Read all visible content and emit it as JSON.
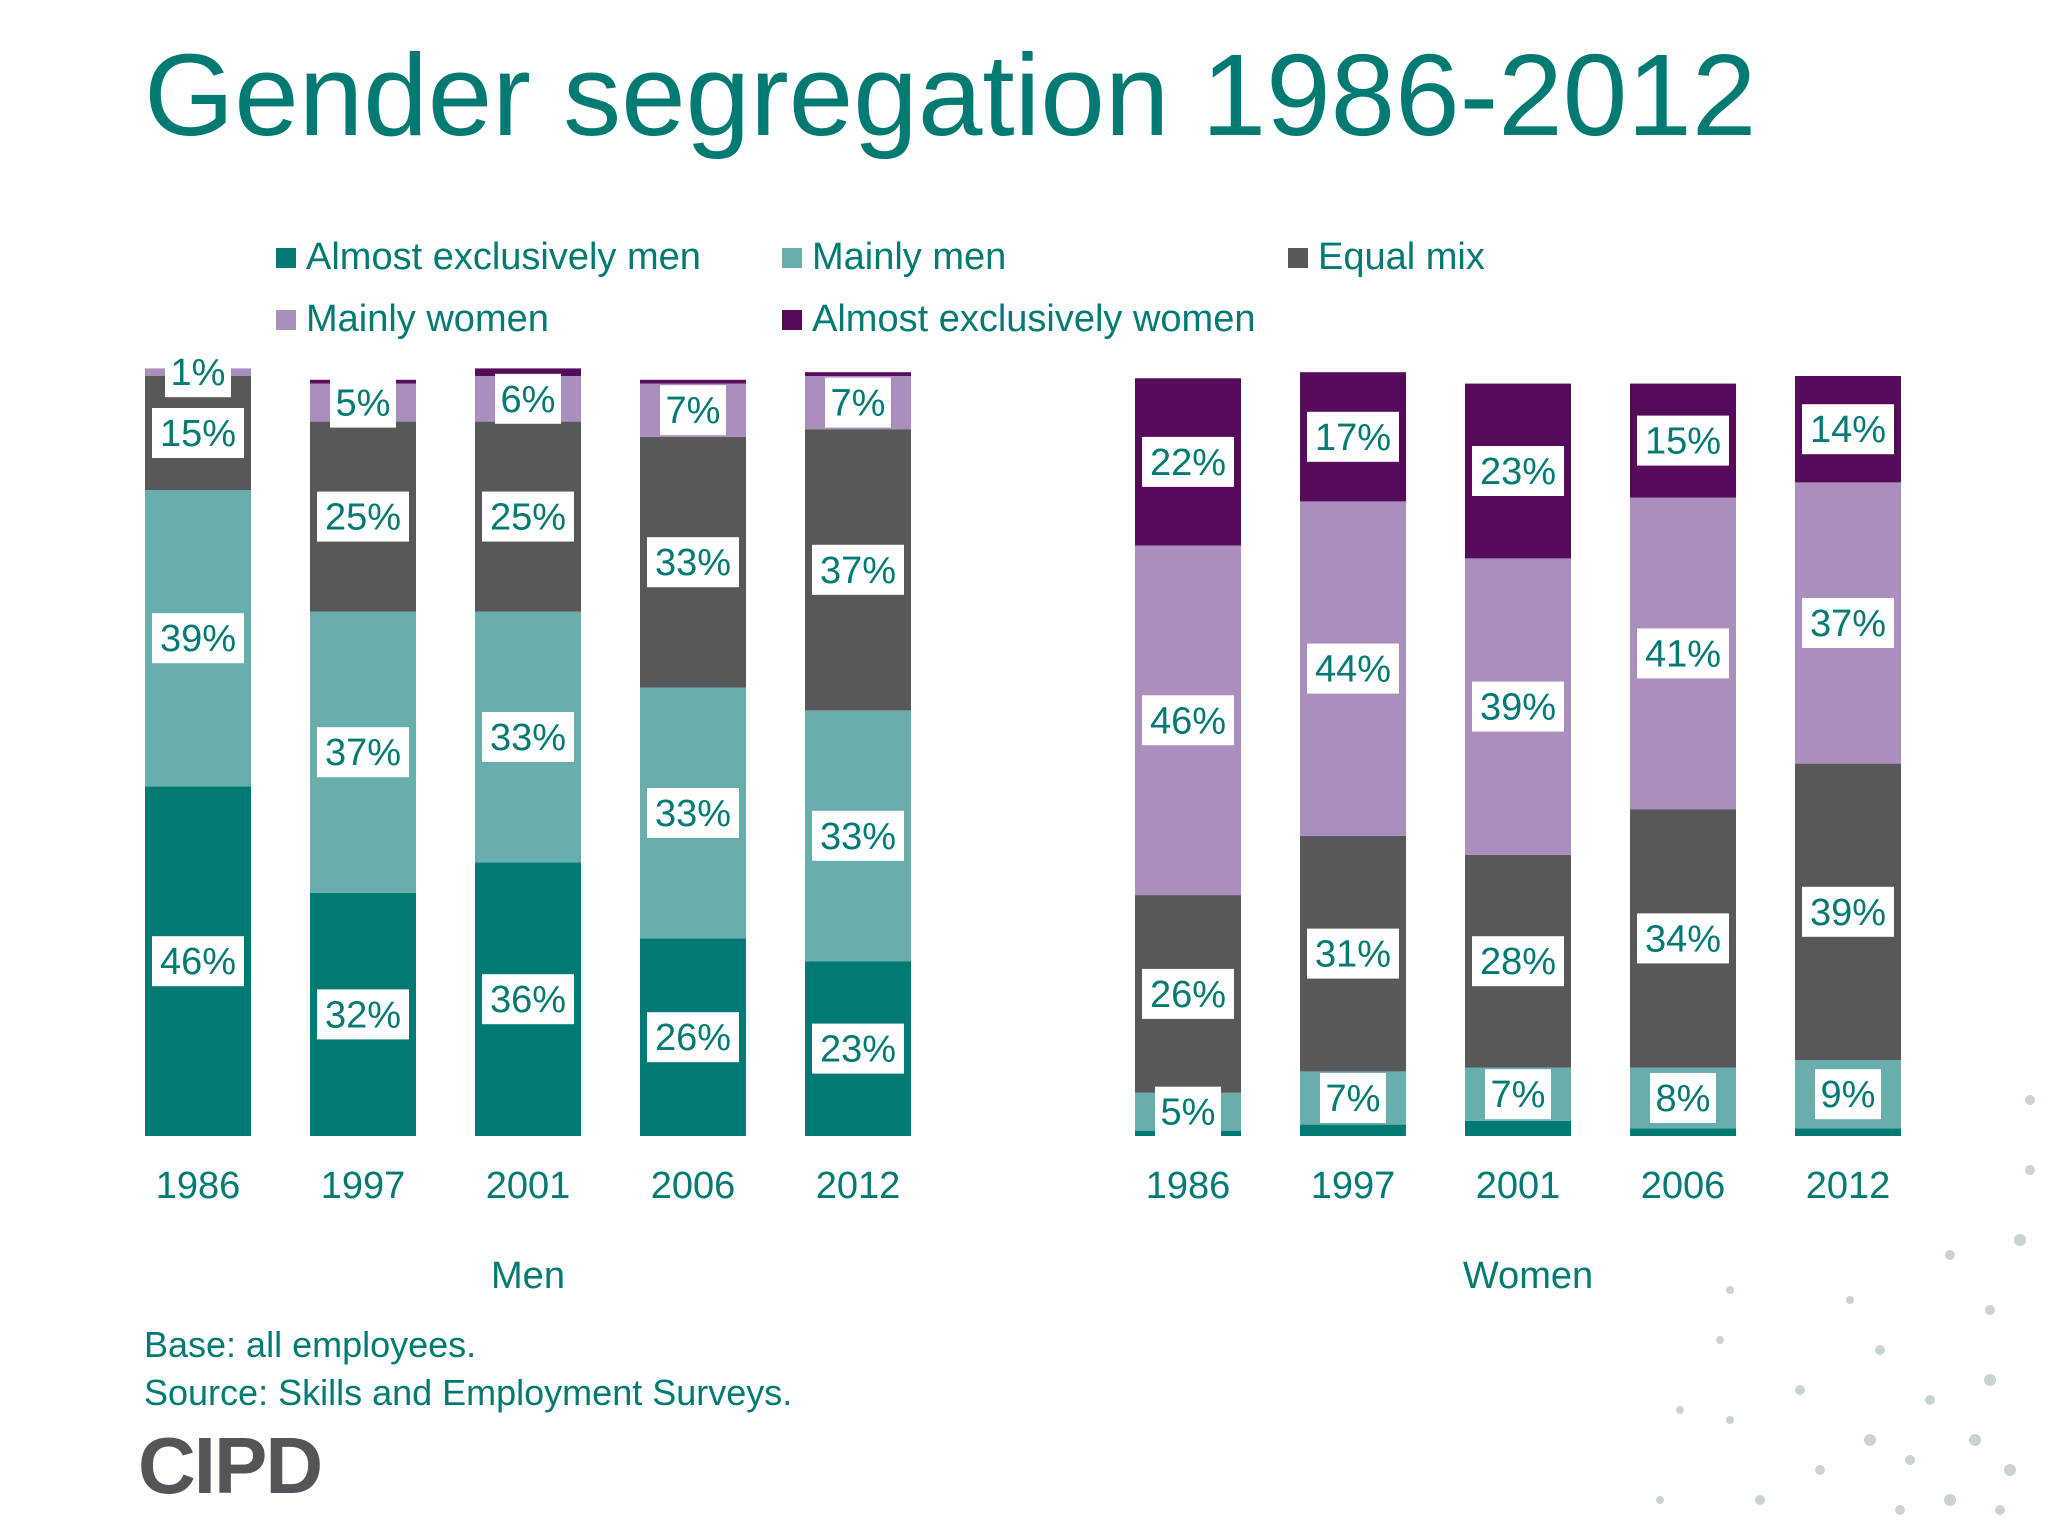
{
  "title": "Gender segregation 1986-2012",
  "legend": [
    {
      "label": "Almost exclusively men",
      "color": "#007a73"
    },
    {
      "label": "Mainly men",
      "color": "#67aead"
    },
    {
      "label": "Equal mix",
      "color": "#58585b"
    },
    {
      "label": "Mainly women",
      "color": "#aa8fbe"
    },
    {
      "label": "Almost exclusively women",
      "color": "#560c5a"
    }
  ],
  "footnotes": {
    "base": "Base: all employees.",
    "source": "Source: Skills and Employment Surveys."
  },
  "logo_text": "CIPD",
  "chart_data": [
    {
      "type": "bar",
      "stacked": true,
      "xlabel": "Men",
      "categories": [
        "1986",
        "1997",
        "2001",
        "2006",
        "2012"
      ],
      "ylim": [
        0,
        100
      ],
      "series": [
        {
          "name": "Almost exclusively men",
          "values": [
            46,
            32,
            36,
            26,
            23
          ],
          "labels": [
            "46%",
            "32%",
            "36%",
            "26%",
            "23%"
          ]
        },
        {
          "name": "Mainly men",
          "values": [
            39,
            37,
            33,
            33,
            33
          ],
          "labels": [
            "39%",
            "37%",
            "33%",
            "33%",
            "33%"
          ]
        },
        {
          "name": "Equal mix",
          "values": [
            15,
            25,
            25,
            33,
            37
          ],
          "labels": [
            "15%",
            "25%",
            "25%",
            "33%",
            "37%"
          ]
        },
        {
          "name": "Mainly women",
          "values": [
            1,
            5,
            6,
            7,
            7
          ],
          "labels": [
            "1%",
            "5%",
            "6%",
            "7%",
            "7%"
          ]
        },
        {
          "name": "Almost exclusively women",
          "values": [
            0,
            0.5,
            1,
            0.5,
            0.5
          ],
          "labels": [
            "",
            "",
            "",
            "",
            ""
          ]
        }
      ]
    },
    {
      "type": "bar",
      "stacked": true,
      "xlabel": "Women",
      "categories": [
        "1986",
        "1997",
        "2001",
        "2006",
        "2012"
      ],
      "ylim": [
        0,
        100
      ],
      "series": [
        {
          "name": "Almost exclusively men",
          "values": [
            0.7,
            1.5,
            2,
            1,
            1
          ],
          "labels": [
            "",
            "",
            "",
            "",
            ""
          ]
        },
        {
          "name": "Mainly men",
          "values": [
            5,
            7,
            7,
            8,
            9
          ],
          "labels": [
            "5%",
            "7%",
            "7%",
            "8%",
            "9%"
          ]
        },
        {
          "name": "Equal mix",
          "values": [
            26,
            31,
            28,
            34,
            39
          ],
          "labels": [
            "26%",
            "31%",
            "28%",
            "34%",
            "39%"
          ]
        },
        {
          "name": "Mainly women",
          "values": [
            46,
            44,
            39,
            41,
            37
          ],
          "labels": [
            "46%",
            "44%",
            "39%",
            "41%",
            "37%"
          ]
        },
        {
          "name": "Almost exclusively women",
          "values": [
            22,
            17,
            23,
            15,
            14
          ],
          "labels": [
            "22%",
            "17%",
            "23%",
            "15%",
            "14%"
          ]
        }
      ]
    }
  ]
}
